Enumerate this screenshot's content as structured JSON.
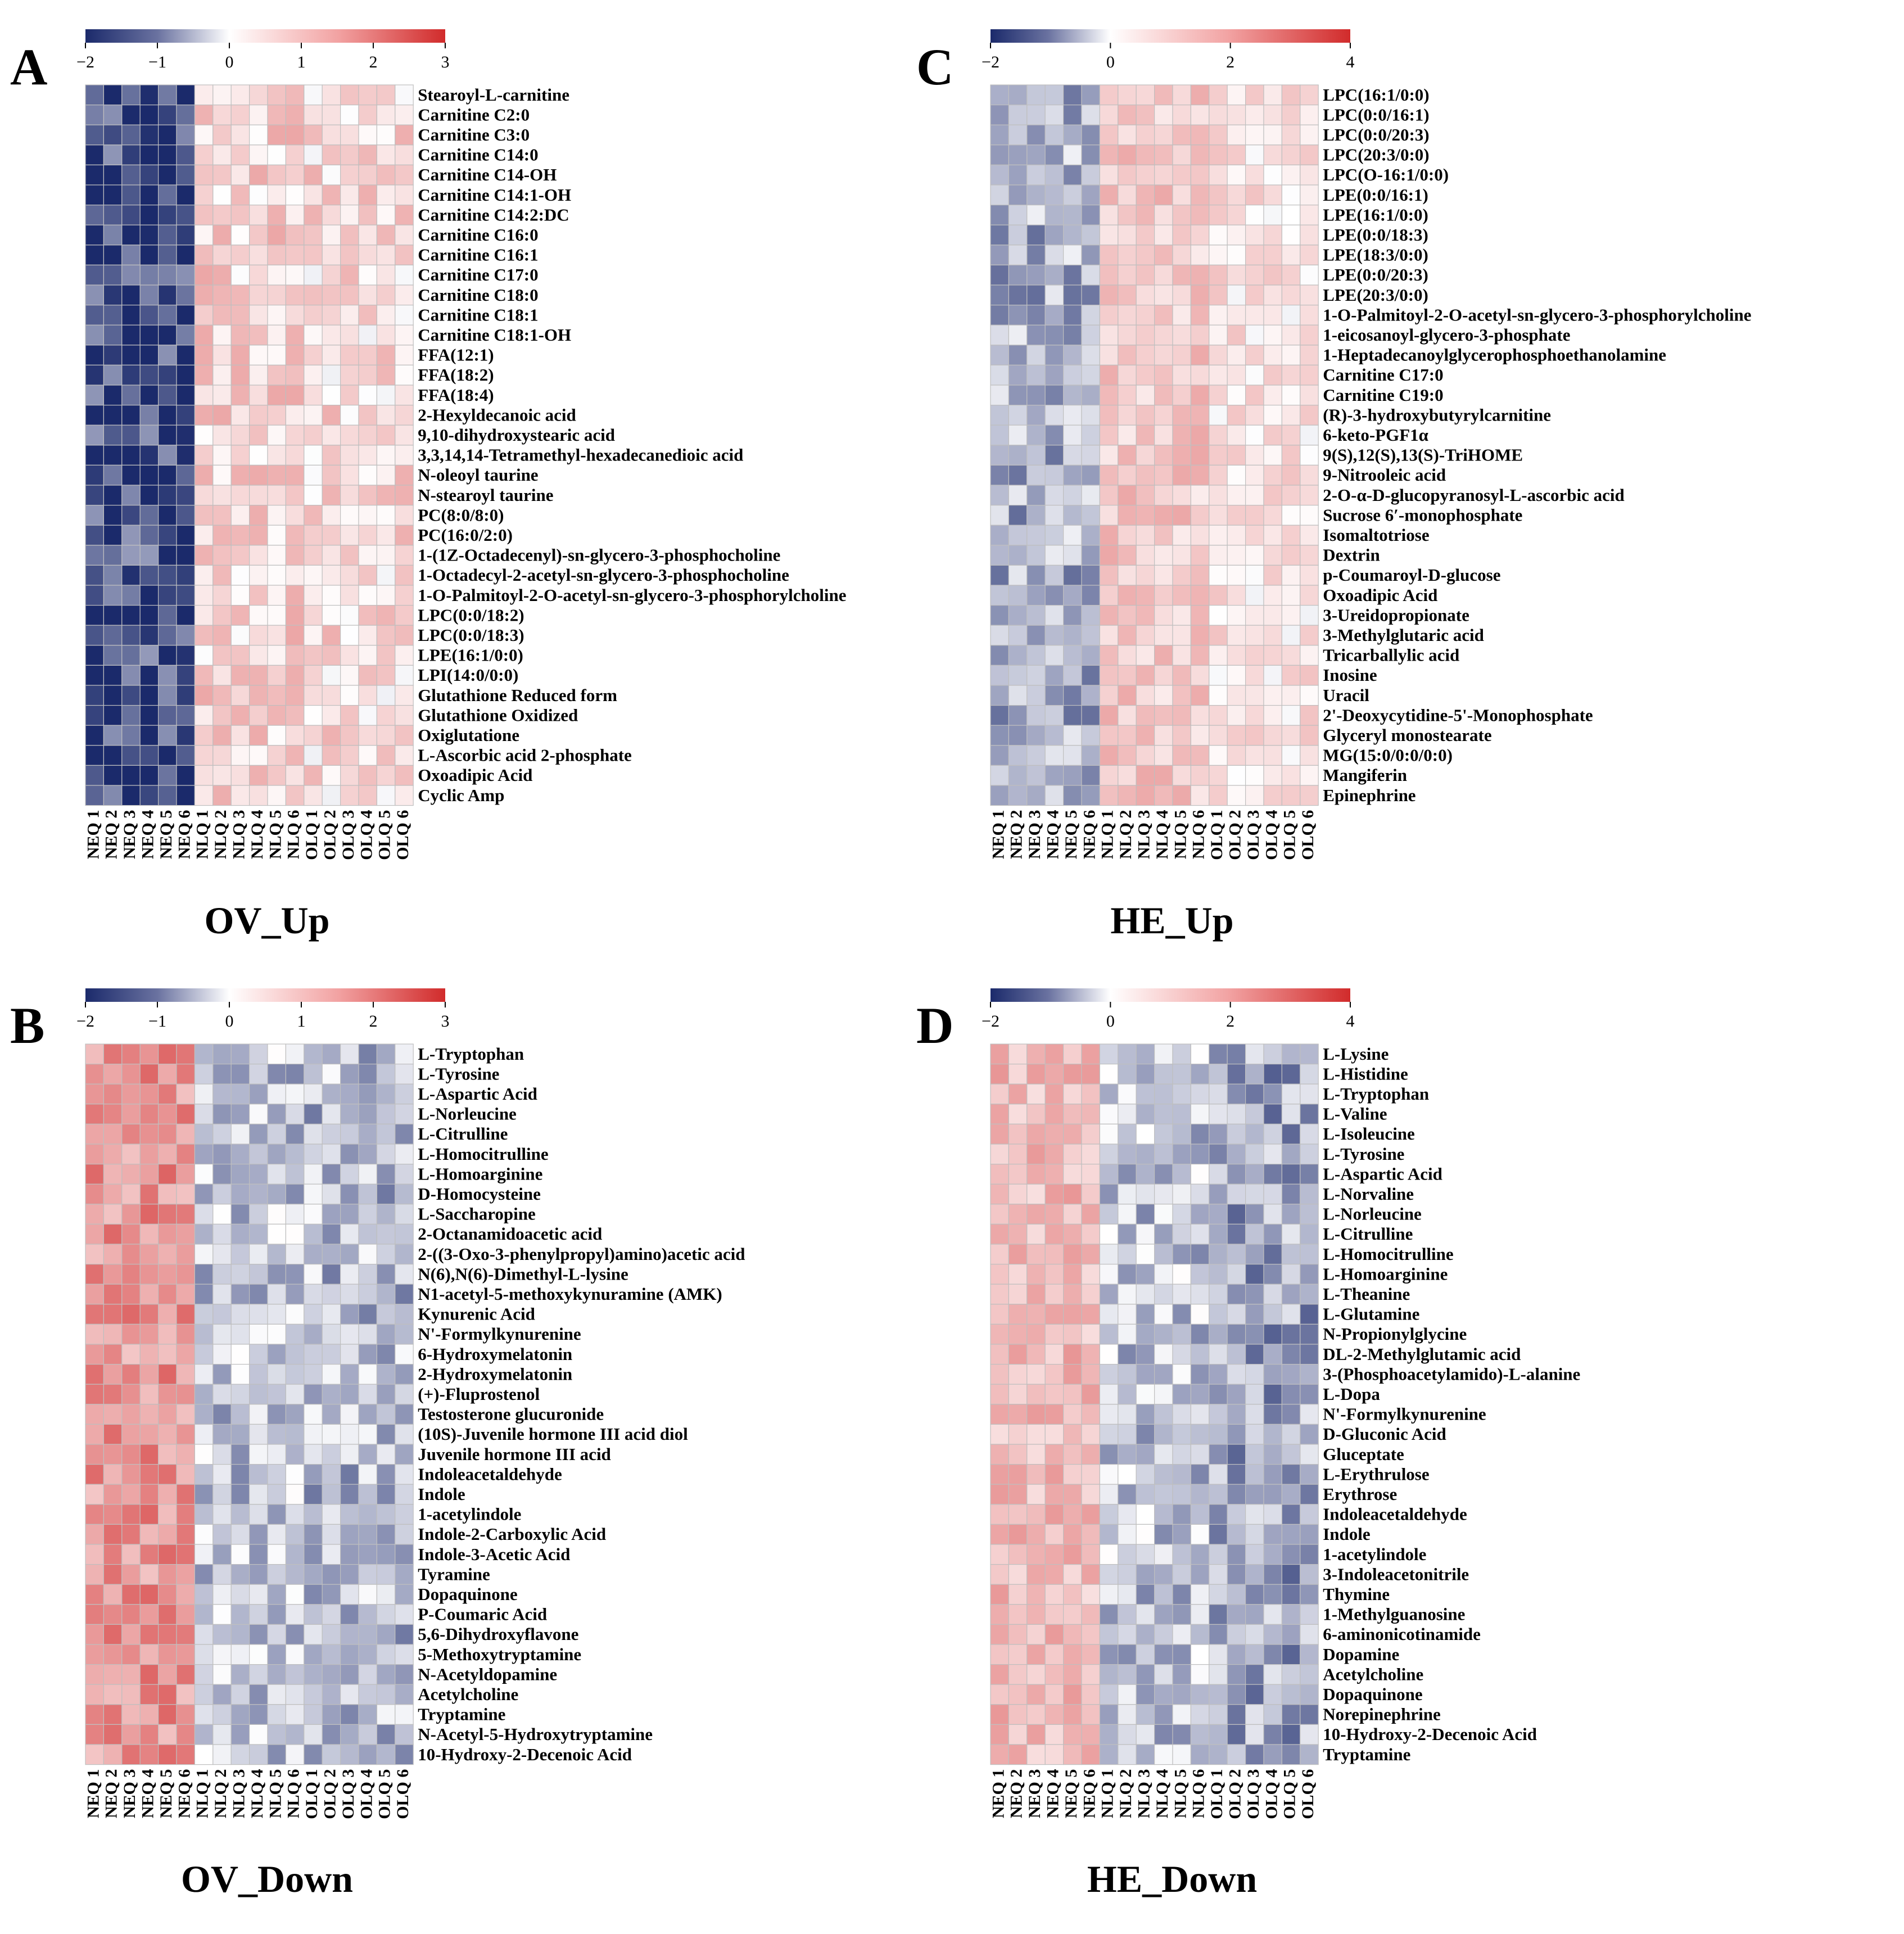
{
  "colors": {
    "low": "#1b2a6b",
    "mid": "#ffffff",
    "high": "#d12b2b",
    "grid": "#bfbfbf",
    "text": "#000000"
  },
  "chart_data": [
    {
      "type": "heatmap",
      "panel_label": "A",
      "title": "OV_Up",
      "colorbar": {
        "ticks": [
          "−2",
          "−1",
          "0",
          "1",
          "2",
          "3"
        ],
        "range": [
          -2,
          3
        ]
      },
      "columns": [
        "NEQ 1",
        "NEQ 2",
        "NEQ 3",
        "NEQ 4",
        "NEQ 5",
        "NEQ 6",
        "NLQ 1",
        "NLQ 2",
        "NLQ 3",
        "NLQ 4",
        "NLQ 5",
        "NLQ 6",
        "OLQ 1",
        "OLQ 2",
        "OLQ 3",
        "OLQ 4",
        "OLQ 5",
        "OLQ 6"
      ],
      "rows": [
        "Stearoyl-L-carnitine",
        "Carnitine C2:0",
        "Carnitine C3:0",
        "Carnitine C14:0",
        "Carnitine C14-OH",
        "Carnitine C14:1-OH",
        "Carnitine C14:2:DC",
        "Carnitine C16:0",
        "Carnitine C16:1",
        "Carnitine C17:0",
        "Carnitine C18:0",
        "Carnitine C18:1",
        "Carnitine C18:1-OH",
        "FFA(12:1)",
        "FFA(18:2)",
        "FFA(18:4)",
        "2-Hexyldecanoic acid",
        "9,10-dihydroxystearic acid",
        "3,3,14,14-Tetramethyl-hexadecanedioic acid",
        "N-oleoyl taurine",
        "N-stearoyl taurine",
        "PC(8:0/8:0)",
        "PC(16:0/2:0)",
        "1-(1Z-Octadecenyl)-sn-glycero-3-phosphocholine",
        "1-Octadecyl-2-acetyl-sn-glycero-3-phosphocholine",
        "1-O-Palmitoyl-2-O-acetyl-sn-glycero-3-phosphorylcholine",
        "LPC(0:0/18:2)",
        "LPC(0:0/18:3)",
        "LPE(16:1/0:0)",
        "LPI(14:0/0:0)",
        "Glutathione Reduced form",
        "Glutathione Oxidized",
        "Oxiglutatione",
        "L-Ascorbic acid 2-phosphate",
        "Oxoadipic Acid",
        "Cyclic Amp"
      ],
      "group_means": [
        -1.75,
        0.6,
        0.5
      ],
      "note": "z-scored abundance; NEQ columns low (blue), NLQ/OLQ columns elevated (red)"
    },
    {
      "type": "heatmap",
      "panel_label": "B",
      "title": "OV_Down",
      "colorbar": {
        "ticks": [
          "−2",
          "−1",
          "0",
          "1",
          "2",
          "3"
        ],
        "range": [
          -2,
          3
        ]
      },
      "columns": [
        "NEQ 1",
        "NEQ 2",
        "NEQ 3",
        "NEQ 4",
        "NEQ 5",
        "NEQ 6",
        "NLQ 1",
        "NLQ 2",
        "NLQ 3",
        "NLQ 4",
        "NLQ 5",
        "NLQ 6",
        "OLQ 1",
        "OLQ 2",
        "OLQ 3",
        "OLQ 4",
        "OLQ 5",
        "OLQ 6"
      ],
      "rows": [
        "L-Tryptophan",
        "L-Tyrosine",
        "L-Aspartic Acid",
        "L-Norleucine",
        "L-Citrulline",
        "L-Homocitrulline",
        "L-Homoarginine",
        "D-Homocysteine",
        "L-Saccharopine",
        "2-Octanamidoacetic acid",
        "2-((3-Oxo-3-phenylpropyl)amino)acetic acid",
        "N(6),N(6)-Dimethyl-L-lysine",
        "N1-acetyl-5-methoxykynuramine (AMK)",
        "Kynurenic Acid",
        "N'-Formylkynurenine",
        "6-Hydroxymelatonin",
        "2-Hydroxymelatonin",
        "(+)-Fluprostenol",
        "Testosterone glucuronide",
        "(10S)-Juvenile hormone III acid diol",
        "Juvenile hormone III acid",
        "Indoleacetaldehyde",
        "Indole",
        "1-acetylindole",
        "Indole-2-Carboxylic Acid",
        "Indole-3-Acetic Acid",
        "Tyramine",
        "Dopaquinone",
        "P-Coumaric Acid",
        "5,6-Dihydroxyflavone",
        "5-Methoxytryptamine",
        "N-Acetyldopamine",
        "Acetylcholine",
        "Tryptamine",
        "N-Acetyl-5-Hydroxytryptamine",
        "10-Hydroxy-2-Decenoic Acid"
      ],
      "group_means": [
        1.5,
        -0.6,
        -0.7
      ],
      "note": "z-scored abundance; NEQ columns high (red), NLQ/OLQ columns reduced (blue-grey)"
    },
    {
      "type": "heatmap",
      "panel_label": "C",
      "title": "HE_Up",
      "colorbar": {
        "ticks": [
          "−2",
          "0",
          "2",
          "4"
        ],
        "range": [
          -2,
          4
        ]
      },
      "columns": [
        "NEQ 1",
        "NEQ 2",
        "NEQ 3",
        "NEQ 4",
        "NEQ 5",
        "NEQ 6",
        "NLQ 1",
        "NLQ 2",
        "NLQ 3",
        "NLQ 4",
        "NLQ 5",
        "NLQ 6",
        "OLQ 1",
        "OLQ 2",
        "OLQ 3",
        "OLQ 4",
        "OLQ 5",
        "OLQ 6"
      ],
      "rows": [
        "LPC(16:1/0:0)",
        "LPC(0:0/16:1)",
        "LPC(0:0/20:3)",
        "LPC(20:3/0:0)",
        "LPC(O-16:1/0:0)",
        "LPE(0:0/16:1)",
        "LPE(16:1/0:0)",
        "LPE(0:0/18:3)",
        "LPE(18:3/0:0)",
        "LPE(0:0/20:3)",
        "LPE(20:3/0:0)",
        "1-O-Palmitoyl-2-O-acetyl-sn-glycero-3-phosphorylcholine",
        "1-eicosanoyl-glycero-3-phosphate",
        "1-Heptadecanoylglycerophosphoethanolamine",
        "Carnitine C17:0",
        "Carnitine C19:0",
        "(R)-3-hydroxybutyrylcarnitine",
        "6-keto-PGF1α",
        "9(S),12(S),13(S)-TriHOME",
        "9-Nitrooleic acid",
        "2-O-α-D-glucopyranosyl-L-ascorbic acid",
        "Sucrose 6′-monophosphate",
        "Isomaltotriose",
        "Dextrin",
        "p-Coumaroyl-D-glucose",
        "Oxoadipic Acid",
        "3-Ureidopropionate",
        "3-Methylglutaric acid",
        "Tricarballylic acid",
        "Inosine",
        "Uracil",
        "2'-Deoxycytidine-5'-Monophosphate",
        "Glyceryl monostearate",
        "MG(15:0/0:0/0:0)",
        "Mangiferin",
        "Epinephrine"
      ],
      "group_means": [
        -0.8,
        1.0,
        0.5
      ],
      "note": "z-scored abundance; NEQ columns low (blue-grey), NLQ/OLQ columns elevated (red)"
    },
    {
      "type": "heatmap",
      "panel_label": "D",
      "title": "HE_Down",
      "colorbar": {
        "ticks": [
          "−2",
          "0",
          "2",
          "4"
        ],
        "range": [
          -2,
          4
        ]
      },
      "columns": [
        "NEQ 1",
        "NEQ 2",
        "NEQ 3",
        "NEQ 4",
        "NEQ 5",
        "NEQ 6",
        "NLQ 1",
        "NLQ 2",
        "NLQ 3",
        "NLQ 4",
        "NLQ 5",
        "NLQ 6",
        "OLQ 1",
        "OLQ 2",
        "OLQ 3",
        "OLQ 4",
        "OLQ 5",
        "OLQ 6"
      ],
      "rows": [
        "L-Lysine",
        "L-Histidine",
        "L-Tryptophan",
        "L-Valine",
        "L-Isoleucine",
        "L-Tyrosine",
        "L-Aspartic Acid",
        "L-Norvaline",
        "L-Norleucine",
        "L-Citrulline",
        "L-Homocitrulline",
        "L-Homoarginine",
        "L-Theanine",
        "L-Glutamine",
        "N-Propionylglycine",
        "DL-2-Methylglutamic acid",
        "3-(Phosphoacetylamido)-L-alanine",
        "L-Dopa",
        "N'-Formylkynurenine",
        "D-Gluconic Acid",
        "Gluceptate",
        "L-Erythrulose",
        "Erythrose",
        "Indoleacetaldehyde",
        "Indole",
        "1-acetylindole",
        "3-Indoleacetonitrile",
        "Thymine",
        "1-Methylguanosine",
        "6-aminonicotinamide",
        "Dopamine",
        "Acetylcholine",
        "Dopaquinone",
        "Norepinephrine",
        "10-Hydroxy-2-Decenoic Acid",
        "Tryptamine"
      ],
      "group_means": [
        1.3,
        -0.6,
        -0.9
      ],
      "note": "z-scored abundance; NEQ columns high (red), NLQ/OLQ columns reduced (blue)"
    }
  ]
}
